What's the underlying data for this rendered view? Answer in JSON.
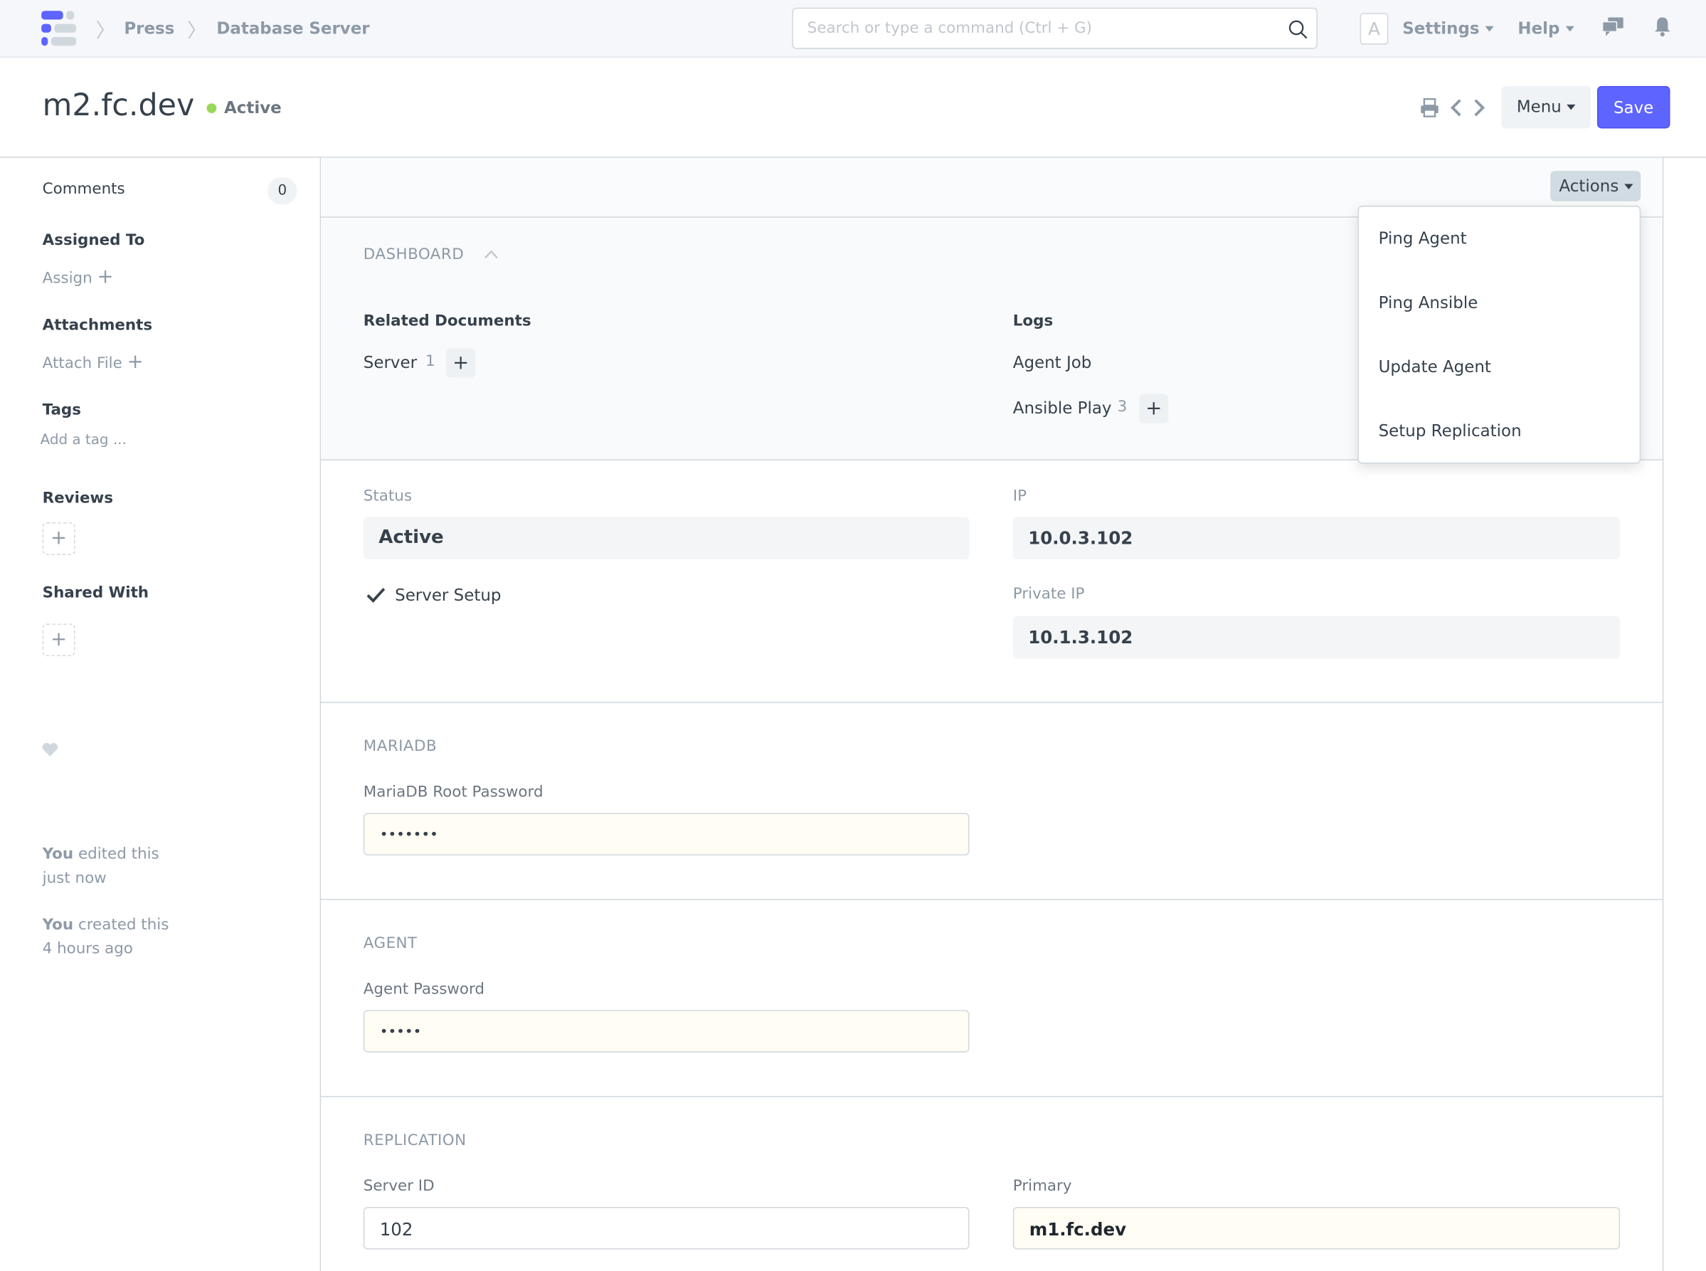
{
  "navbar": {
    "breadcrumbs": [
      "Press",
      "Database Server"
    ],
    "search_placeholder": "Search or type a command (Ctrl + G)",
    "avatar_letter": "A",
    "settings_label": "Settings",
    "help_label": "Help"
  },
  "page": {
    "title": "m2.fc.dev",
    "status": "Active",
    "status_color": "#98d85b",
    "menu_label": "Menu",
    "save_label": "Save",
    "accent_color": "#5e64ff"
  },
  "sidebar": {
    "comments_label": "Comments",
    "comments_count": "0",
    "assigned_to_label": "Assigned To",
    "assign_label": "Assign",
    "attachments_label": "Attachments",
    "attach_file_label": "Attach File",
    "tags_label": "Tags",
    "add_tag_label": "Add a tag ...",
    "reviews_label": "Reviews",
    "shared_with_label": "Shared With",
    "activity": [
      {
        "who": "You",
        "what": "edited this",
        "when": "just now"
      },
      {
        "who": "You",
        "what": "created this",
        "when": "4 hours ago"
      }
    ]
  },
  "actions": {
    "label": "Actions",
    "items": [
      "Ping Agent",
      "Ping Ansible",
      "Update Agent",
      "Setup Replication"
    ]
  },
  "dashboard": {
    "heading": "DASHBOARD",
    "related_heading": "Related Documents",
    "related": [
      {
        "label": "Server",
        "count": "1"
      }
    ],
    "logs_heading": "Logs",
    "logs": [
      {
        "label": "Agent Job",
        "count": ""
      },
      {
        "label": "Ansible Play",
        "count": "3"
      }
    ]
  },
  "fields": {
    "status_label": "Status",
    "status_value": "Active",
    "server_setup_label": "Server Setup",
    "ip_label": "IP",
    "ip_value": "10.0.3.102",
    "private_ip_label": "Private IP",
    "private_ip_value": "10.1.3.102"
  },
  "mariadb": {
    "heading": "MARIADB",
    "root_password_label": "MariaDB Root Password",
    "root_password_value": "•••••••"
  },
  "agent": {
    "heading": "AGENT",
    "password_label": "Agent Password",
    "password_value": "•••••"
  },
  "replication": {
    "heading": "REPLICATION",
    "server_id_label": "Server ID",
    "server_id_value": "102",
    "primary_label": "Primary",
    "primary_value": "m1.fc.dev"
  }
}
